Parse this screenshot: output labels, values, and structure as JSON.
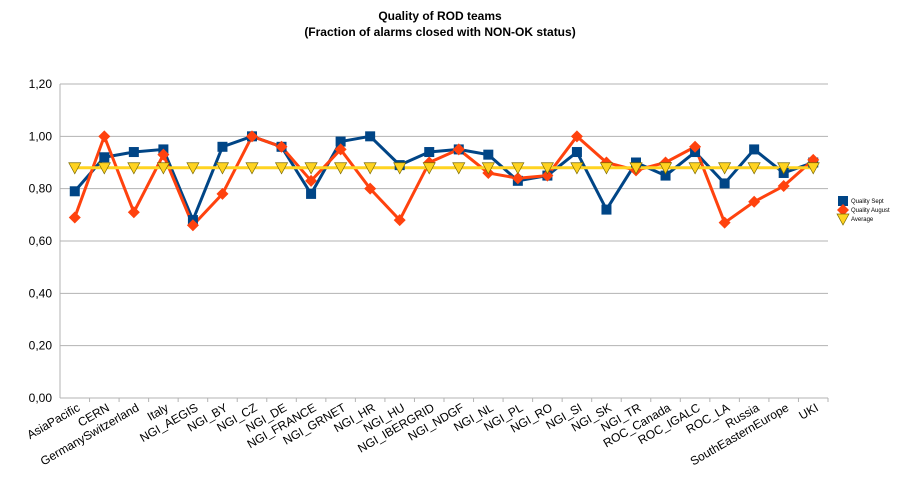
{
  "chart_data": {
    "type": "line",
    "title": "Quality of ROD teams",
    "subtitle": "(Fraction of alarms closed with NON-OK status)",
    "categories": [
      "AsiaPacific",
      "CERN",
      "GermanySwitzerland",
      "Italy",
      "NGI_AEGIS",
      "NGI_BY",
      "NGI_CZ",
      "NGI_DE",
      "NGI_FRANCE",
      "NGI_GRNET",
      "NGI_HR",
      "NGI_HU",
      "NGI_IBERGRID",
      "NGI_NDGF",
      "NGI_NL",
      "NGI_PL",
      "NGI_RO",
      "NGI_SI",
      "NGI_SK",
      "NGI_TR",
      "ROC_Canada",
      "ROC_IGALC",
      "ROC_LA",
      "Russia",
      "SouthEasternEurope",
      "UKI"
    ],
    "series": [
      {
        "name": "Quality Sept",
        "color": "#004586",
        "marker": "square",
        "values": [
          0.79,
          0.92,
          0.94,
          0.95,
          0.68,
          0.96,
          1.0,
          0.96,
          0.78,
          0.98,
          1.0,
          0.89,
          0.94,
          0.95,
          0.93,
          0.83,
          0.85,
          0.94,
          0.72,
          0.9,
          0.85,
          0.94,
          0.82,
          0.95,
          0.86,
          0.9
        ]
      },
      {
        "name": "Quality August",
        "color": "#ff420e",
        "marker": "diamond",
        "values": [
          0.69,
          1.0,
          0.71,
          0.93,
          0.66,
          0.78,
          1.0,
          0.96,
          0.83,
          0.95,
          0.8,
          0.68,
          0.9,
          0.95,
          0.86,
          0.84,
          0.85,
          1.0,
          0.9,
          0.87,
          0.9,
          0.96,
          0.67,
          0.75,
          0.81,
          0.91
        ]
      },
      {
        "name": "Average",
        "color": "#ffd320",
        "marker": "triangle",
        "values": [
          0.88,
          0.88,
          0.88,
          0.88,
          0.88,
          0.88,
          0.88,
          0.88,
          0.88,
          0.88,
          0.88,
          0.88,
          0.88,
          0.88,
          0.88,
          0.88,
          0.88,
          0.88,
          0.88,
          0.88,
          0.88,
          0.88,
          0.88,
          0.88,
          0.88,
          0.88
        ]
      }
    ],
    "ylim": [
      0,
      1.2
    ],
    "yticks": [
      {
        "value": 0,
        "label": "0,00"
      },
      {
        "value": 0.2,
        "label": "0,20"
      },
      {
        "value": 0.4,
        "label": "0,40"
      },
      {
        "value": 0.6,
        "label": "0,60"
      },
      {
        "value": 0.8,
        "label": "0,80"
      },
      {
        "value": 1.0,
        "label": "1,00"
      },
      {
        "value": 1.2,
        "label": "1,20"
      }
    ],
    "grid": true,
    "legend": "right"
  }
}
